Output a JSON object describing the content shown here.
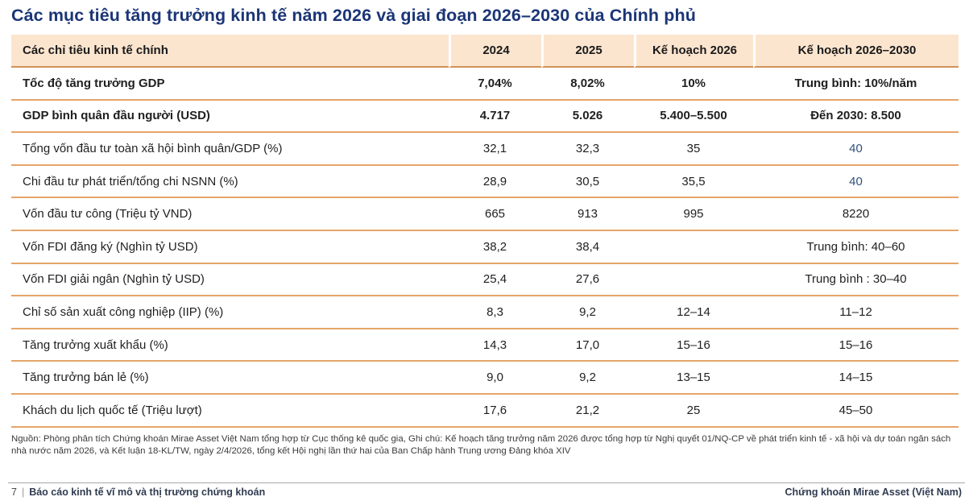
{
  "page": {
    "title": "Các mục tiêu tăng trưởng kinh tế năm 2026 và giai đoạn 2026–2030 của Chính phủ"
  },
  "colors": {
    "title_navy": "#1b3576",
    "header_bg": "#fce5cf",
    "row_line_orange": "#e5a569",
    "accent_blue": "#31517d",
    "body_text": "#1f1f1f"
  },
  "table": {
    "columns": [
      "Các chỉ tiêu kinh tế chính",
      "2024",
      "2025",
      "Kế hoạch 2026",
      "Kế hoạch 2026–2030"
    ],
    "rows": [
      {
        "label": "Tốc độ tăng trưởng GDP",
        "v2024": "7,04%",
        "v2025": "8,02%",
        "plan2026": "10%",
        "plan2030": "Trung bình: 10%/năm",
        "bold": true,
        "plan2030_blue": false
      },
      {
        "label": "GDP bình quân đầu người (USD)",
        "v2024": "4.717",
        "v2025": "5.026",
        "plan2026": "5.400–5.500",
        "plan2030": "Đến 2030: 8.500",
        "bold": true,
        "plan2030_blue": false
      },
      {
        "label": "Tổng vốn đầu tư toàn xã hội bình quân/GDP (%)",
        "v2024": "32,1",
        "v2025": "32,3",
        "plan2026": "35",
        "plan2030": "40",
        "bold": false,
        "plan2030_blue": true
      },
      {
        "label": "Chi đầu tư phát triển/tổng chi NSNN (%)",
        "v2024": "28,9",
        "v2025": "30,5",
        "plan2026": "35,5",
        "plan2030": "40",
        "bold": false,
        "plan2030_blue": true
      },
      {
        "label": "Vốn đầu tư công (Triệu tỷ VND)",
        "v2024": "665",
        "v2025": "913",
        "plan2026": "995",
        "plan2030": "8220",
        "bold": false,
        "plan2030_blue": false
      },
      {
        "label": "Vốn FDI đăng ký (Nghìn tỷ USD)",
        "v2024": "38,2",
        "v2025": "38,4",
        "plan2026": "",
        "plan2030": "Trung bình: 40–60",
        "bold": false,
        "plan2030_blue": false
      },
      {
        "label": "Vốn FDI  giải ngân (Nghìn tỷ USD)",
        "v2024": "25,4",
        "v2025": "27,6",
        "plan2026": "",
        "plan2030": "Trung bình : 30–40",
        "bold": false,
        "plan2030_blue": false
      },
      {
        "label": "Chỉ số sản xuất công nghiệp (IIP) (%)",
        "v2024": "8,3",
        "v2025": "9,2",
        "plan2026": "12–14",
        "plan2030": "11–12",
        "bold": false,
        "plan2030_blue": false
      },
      {
        "label": "Tăng trưởng xuất khẩu (%)",
        "v2024": "14,3",
        "v2025": "17,0",
        "plan2026": "15–16",
        "plan2030": "15–16",
        "bold": false,
        "plan2030_blue": false
      },
      {
        "label": "Tăng trưởng bán lẻ (%)",
        "v2024": "9,0",
        "v2025": "9,2",
        "plan2026": "13–15",
        "plan2030": "14–15",
        "bold": false,
        "plan2030_blue": false
      },
      {
        "label": "Khách du lịch quốc tế (Triệu lượt)",
        "v2024": "17,6",
        "v2025": "21,2",
        "plan2026": "25",
        "plan2030": "45–50",
        "bold": false,
        "plan2030_blue": false
      }
    ]
  },
  "source_note": "Nguồn: Phòng phân tích Chứng khoán Mirae Asset Việt Nam tổng hợp từ Cục thống kê quốc gia, Ghi chú: Kế hoạch tăng trưởng năm 2026 được tổng hợp từ Nghị quyết 01/NQ-CP về phát triển kinh tế - xã hội và dự toán ngân sách nhà nước năm 2026, và Kết luận 18-KL/TW, ngày 2/4/2026, tổng kết Hội nghị lần thứ hai của Ban Chấp hành Trung ương Đảng khóa XIV",
  "footer": {
    "page_number": "7",
    "separator": "|",
    "left_title": "Báo cáo kinh tế vĩ mô và thị trường chứng khoán",
    "right_title": "Chứng khoán Mirae Asset (Việt Nam)"
  }
}
